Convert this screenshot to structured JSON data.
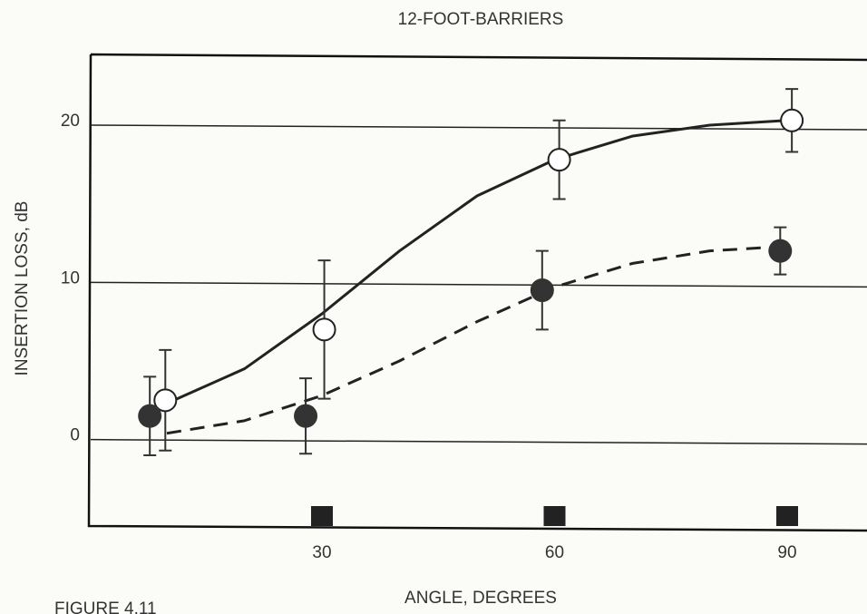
{
  "chart_data": {
    "type": "scatter",
    "title": "12-FOOT-BARRIERS",
    "xlabel": "ANGLE, DEGREES",
    "ylabel": "INSERTION LOSS, dB",
    "annotation": "FIGURE 4.11",
    "xlim": [
      0,
      100
    ],
    "xticks": [
      30,
      60,
      90
    ],
    "ylim": [
      -5.5,
      24.5
    ],
    "yticks": [
      0,
      10,
      20
    ],
    "grid": true,
    "series": [
      {
        "marker": "open",
        "color": "#222222",
        "x": [
          9.8,
          30.3,
          60.6,
          90.6
        ],
        "values": [
          2.5,
          7,
          17.8,
          20.3
        ],
        "errors": [
          3.2,
          4.4,
          2.5,
          2
        ]
      },
      {
        "marker": "filled",
        "color": "#333333",
        "x": [
          7.8,
          27.9,
          58.4,
          89.1
        ],
        "values": [
          1.5,
          1.5,
          9.5,
          12
        ],
        "errors": [
          2.5,
          2.4,
          2.5,
          1.5
        ]
      },
      {
        "line": "solid",
        "color": "#222222",
        "x": [
          10,
          20,
          30,
          40,
          50,
          60,
          70,
          80,
          90
        ],
        "values": [
          2.3,
          4.5,
          8,
          12,
          15.5,
          17.8,
          19.3,
          20,
          20.3
        ]
      },
      {
        "line": "dashed",
        "color": "#222222",
        "x": [
          10,
          20,
          30,
          40,
          50,
          60,
          70,
          80,
          90
        ],
        "values": [
          0.4,
          1.2,
          2.8,
          5,
          7.5,
          9.7,
          11.2,
          12,
          12.3
        ]
      }
    ]
  }
}
